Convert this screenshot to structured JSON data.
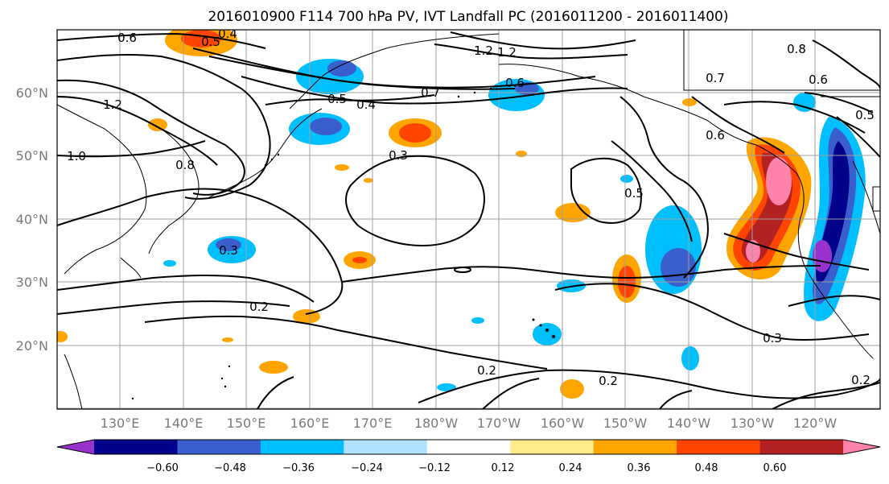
{
  "title": "2016010900 F114 700 hPa PV, IVT Landfall PC (2016011200 - 2016011400)",
  "map": {
    "lat_labels": [
      "60°N",
      "50°N",
      "40°N",
      "30°N",
      "20°N"
    ],
    "lon_labels": [
      "130°E",
      "140°E",
      "150°E",
      "160°E",
      "170°E",
      "180°W",
      "170°W",
      "160°W",
      "150°W",
      "140°W",
      "130°W",
      "120°W"
    ],
    "colors": {
      "land_outline": "#000000",
      "grid": "#a0a0a0",
      "contour": "#000000"
    }
  },
  "contour_labels": [
    "0.6",
    "0.4",
    "0.5",
    "1.2",
    "1.0",
    "0.8",
    "1.2",
    "0.7",
    "0.5",
    "0.4",
    "0.3",
    "0.3",
    "0.2",
    "0.2",
    "0.2",
    "0.5",
    "0.6",
    "0.7",
    "0.6",
    "0.5",
    "0.8",
    "0.3",
    "0.2",
    "1.2",
    "0.6"
  ],
  "colorbar": {
    "ticks": [
      "−0.60",
      "−0.48",
      "−0.36",
      "−0.24",
      "−0.12",
      "0.12",
      "0.24",
      "0.36",
      "0.48",
      "0.60"
    ],
    "colors": [
      "#9932cc",
      "#00008b",
      "#3a5fcd",
      "#00bfff",
      "#b0e2ff",
      "#ffffff",
      "#ffec8b",
      "#ffa500",
      "#ff4500",
      "#b22222",
      "#ff82ab"
    ]
  }
}
